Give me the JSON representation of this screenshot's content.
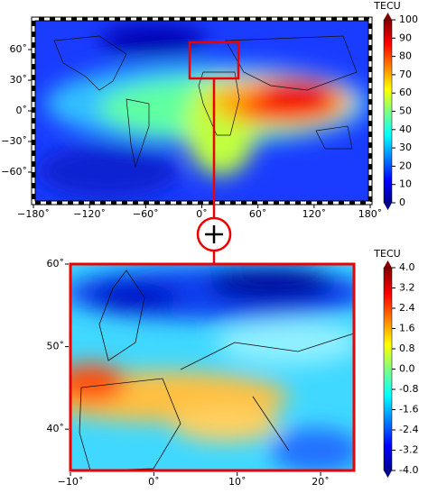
{
  "global_map": {
    "xlim": [
      -180,
      180
    ],
    "ylim": [
      -90,
      90
    ],
    "xticks": [
      {
        "value": -180,
        "label": "−180˚"
      },
      {
        "value": -120,
        "label": "−120˚"
      },
      {
        "value": -60,
        "label": "−60˚"
      },
      {
        "value": 0,
        "label": "0˚"
      },
      {
        "value": 60,
        "label": "60˚"
      },
      {
        "value": 120,
        "label": "120˚"
      },
      {
        "value": 180,
        "label": "180˚"
      }
    ],
    "yticks": [
      {
        "value": 60,
        "label": "60˚"
      },
      {
        "value": 30,
        "label": "30˚"
      },
      {
        "value": 0,
        "label": "0˚"
      },
      {
        "value": -30,
        "label": "−30˚"
      },
      {
        "value": -60,
        "label": "−60˚"
      }
    ],
    "colorbar": {
      "title": "TECU",
      "lim": [
        0,
        100
      ],
      "ticks": [
        0,
        10,
        20,
        30,
        40,
        50,
        60,
        70,
        80,
        90,
        100
      ]
    }
  },
  "zoom_map": {
    "xlim": [
      -10,
      24
    ],
    "ylim": [
      35,
      60
    ],
    "xticks": [
      {
        "value": -10,
        "label": "−10˚"
      },
      {
        "value": 0,
        "label": "0˚"
      },
      {
        "value": 10,
        "label": "10˚"
      },
      {
        "value": 20,
        "label": "20˚"
      }
    ],
    "yticks": [
      {
        "value": 60,
        "label": "60˚"
      },
      {
        "value": 50,
        "label": "50˚"
      },
      {
        "value": 40,
        "label": "40˚"
      }
    ],
    "colorbar": {
      "title": "TECU",
      "lim": [
        -4,
        4
      ],
      "ticks": [
        {
          "value": -4,
          "label": "-4.0"
        },
        -3.2,
        -2.4,
        -1.6,
        -0.8,
        {
          "value": 0,
          "label": "0.0"
        },
        0.8,
        1.6,
        2.4,
        3.2,
        {
          "value": 4,
          "label": "4.0"
        }
      ]
    }
  }
}
